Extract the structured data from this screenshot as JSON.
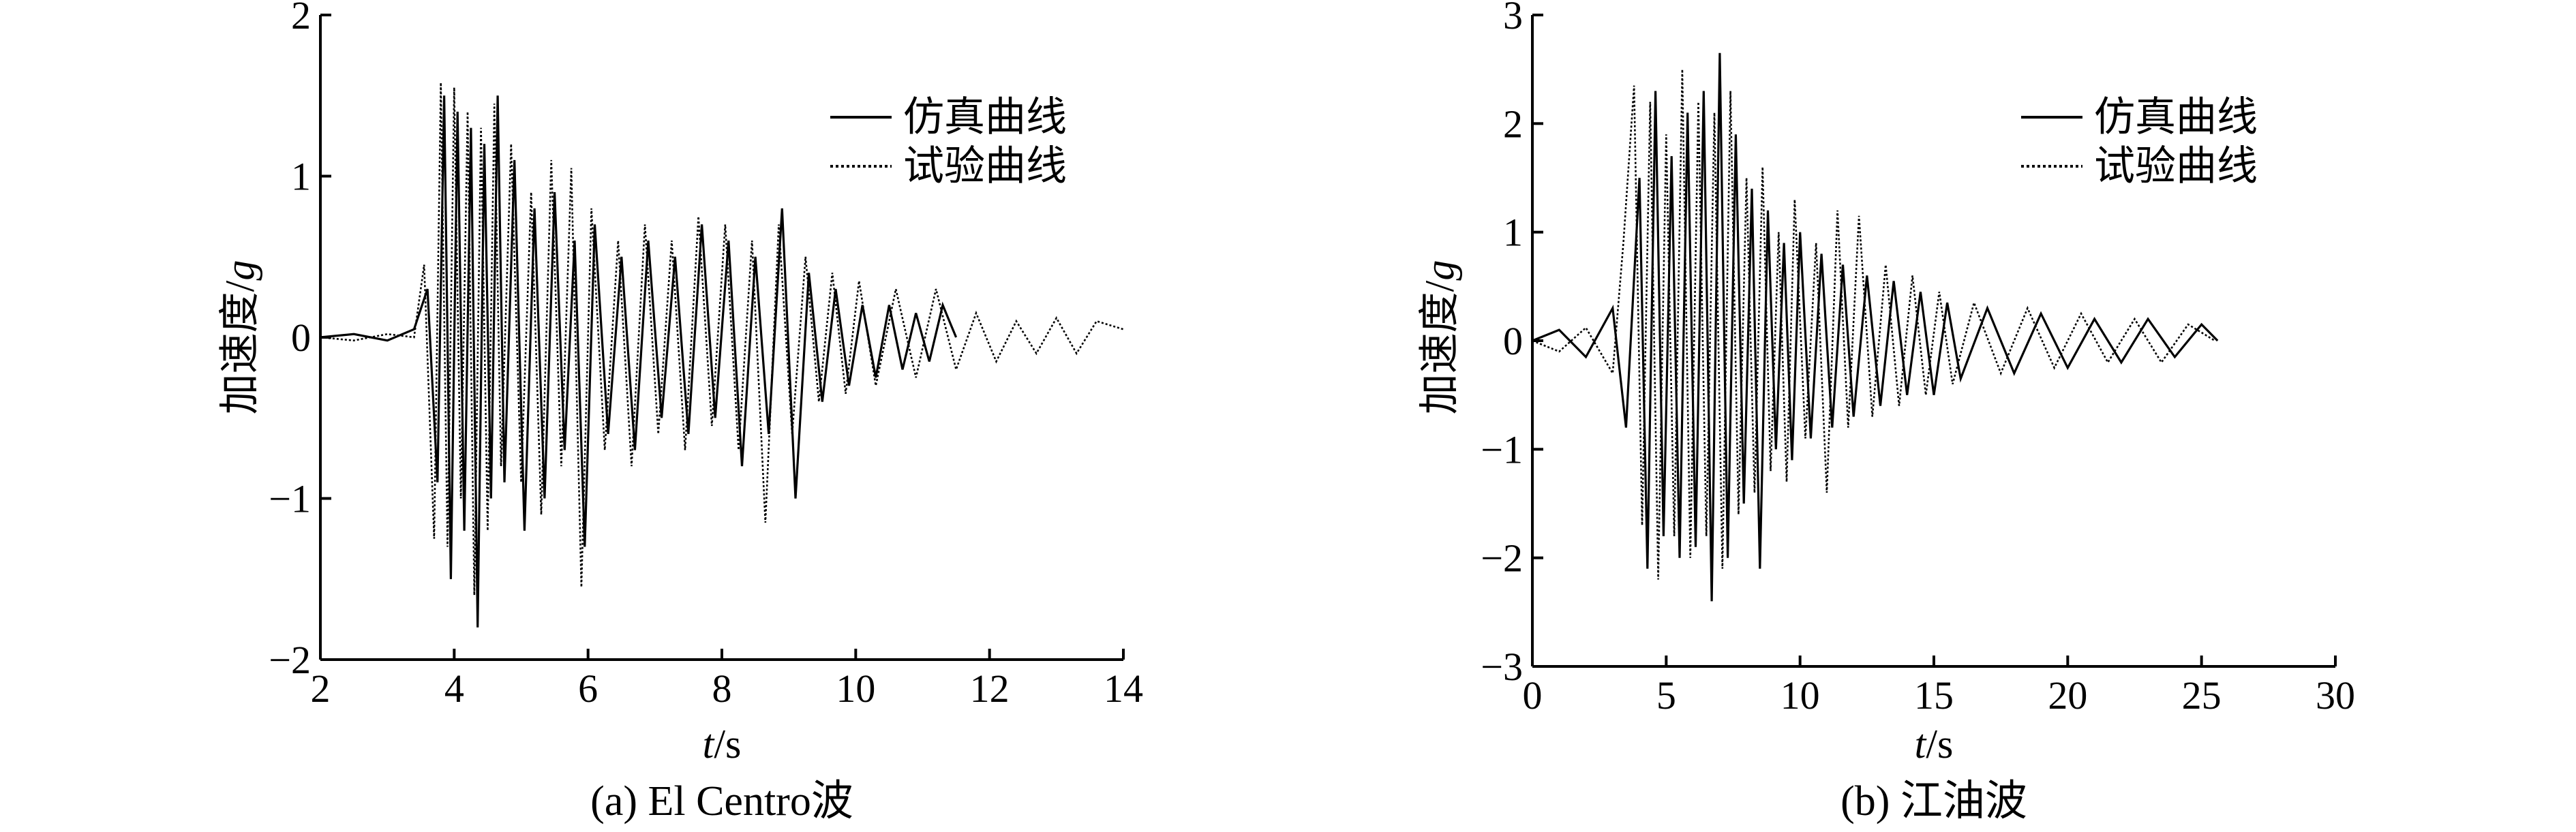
{
  "chart_data": [
    {
      "type": "line",
      "caption": "(a) El Centro波",
      "xlabel_italic": "t",
      "xlabel_unit": "/s",
      "ylabel_text": "加速度/",
      "ylabel_italic": "g",
      "xlim": [
        2,
        14
      ],
      "ylim": [
        -2,
        2
      ],
      "xticks": [
        2,
        4,
        6,
        8,
        10,
        12,
        14
      ],
      "yticks": [
        -2,
        -1,
        0,
        1,
        2
      ],
      "xtick_labels": [
        "2",
        "4",
        "6",
        "8",
        "10",
        "12",
        "14"
      ],
      "ytick_labels": [
        "−2",
        "−1",
        "0",
        "1",
        "2"
      ],
      "legend_position": "top-right",
      "grid": false,
      "series": [
        {
          "name": "仿真曲线",
          "style": "solid",
          "x": [
            2.0,
            2.5,
            3.0,
            3.4,
            3.6,
            3.75,
            3.85,
            3.95,
            4.05,
            4.15,
            4.25,
            4.35,
            4.45,
            4.55,
            4.65,
            4.75,
            4.9,
            5.05,
            5.2,
            5.35,
            5.5,
            5.65,
            5.8,
            5.95,
            6.1,
            6.3,
            6.5,
            6.7,
            6.9,
            7.1,
            7.3,
            7.5,
            7.7,
            7.9,
            8.1,
            8.3,
            8.5,
            8.7,
            8.9,
            9.1,
            9.3,
            9.5,
            9.7,
            9.9,
            10.1,
            10.3,
            10.5,
            10.7,
            10.9,
            11.1,
            11.3,
            11.5
          ],
          "y": [
            0.0,
            0.02,
            -0.02,
            0.05,
            0.3,
            -0.9,
            1.5,
            -1.5,
            1.4,
            -1.2,
            1.3,
            -1.8,
            1.2,
            -1.0,
            1.5,
            -0.9,
            1.1,
            -1.2,
            0.8,
            -1.0,
            0.9,
            -0.7,
            0.6,
            -1.3,
            0.7,
            -0.6,
            0.5,
            -0.7,
            0.6,
            -0.5,
            0.5,
            -0.6,
            0.7,
            -0.5,
            0.6,
            -0.8,
            0.5,
            -0.6,
            0.8,
            -1.0,
            0.4,
            -0.4,
            0.3,
            -0.3,
            0.2,
            -0.25,
            0.2,
            -0.2,
            0.15,
            -0.15,
            0.2,
            0.0
          ]
        },
        {
          "name": "试验曲线",
          "style": "dotted",
          "x": [
            2.0,
            2.5,
            3.0,
            3.4,
            3.55,
            3.7,
            3.8,
            3.9,
            4.0,
            4.1,
            4.2,
            4.3,
            4.4,
            4.5,
            4.6,
            4.7,
            4.85,
            5.0,
            5.15,
            5.3,
            5.45,
            5.6,
            5.75,
            5.9,
            6.05,
            6.25,
            6.45,
            6.65,
            6.85,
            7.05,
            7.25,
            7.45,
            7.65,
            7.85,
            8.05,
            8.25,
            8.45,
            8.65,
            8.85,
            9.05,
            9.25,
            9.45,
            9.65,
            9.85,
            10.05,
            10.3,
            10.6,
            10.9,
            11.2,
            11.5,
            11.8,
            12.1,
            12.4,
            12.7,
            13.0,
            13.3,
            13.6,
            14.0
          ],
          "y": [
            0.0,
            -0.02,
            0.02,
            0.0,
            0.45,
            -1.25,
            1.58,
            -1.3,
            1.55,
            -1.0,
            1.4,
            -1.6,
            1.3,
            -1.2,
            1.45,
            -0.8,
            1.2,
            -0.9,
            0.9,
            -1.1,
            1.1,
            -0.8,
            1.05,
            -1.55,
            0.8,
            -0.7,
            0.6,
            -0.8,
            0.7,
            -0.6,
            0.6,
            -0.7,
            0.75,
            -0.55,
            0.7,
            -0.7,
            0.6,
            -1.15,
            0.7,
            -0.6,
            0.5,
            -0.4,
            0.4,
            -0.35,
            0.35,
            -0.3,
            0.3,
            -0.25,
            0.3,
            -0.2,
            0.15,
            -0.15,
            0.1,
            -0.1,
            0.12,
            -0.1,
            0.1,
            0.05
          ]
        }
      ]
    },
    {
      "type": "line",
      "caption": "(b) 江油波",
      "xlabel_italic": "t",
      "xlabel_unit": "/s",
      "ylabel_text": "加速度/",
      "ylabel_italic": "g",
      "xlim": [
        0,
        30
      ],
      "ylim": [
        -3,
        3
      ],
      "xticks": [
        0,
        5,
        10,
        15,
        20,
        25,
        30
      ],
      "yticks": [
        -3,
        -2,
        -1,
        0,
        1,
        2,
        3
      ],
      "xtick_labels": [
        "0",
        "5",
        "10",
        "15",
        "20",
        "25",
        "30"
      ],
      "ytick_labels": [
        "−3",
        "−2",
        "−1",
        "0",
        "1",
        "2",
        "3"
      ],
      "legend_position": "top-right",
      "grid": false,
      "series": [
        {
          "name": "仿真曲线",
          "style": "solid",
          "x": [
            0.0,
            1.0,
            2.0,
            3.0,
            3.5,
            4.0,
            4.3,
            4.6,
            4.9,
            5.2,
            5.5,
            5.8,
            6.1,
            6.4,
            6.7,
            7.0,
            7.3,
            7.6,
            7.9,
            8.2,
            8.5,
            8.8,
            9.1,
            9.4,
            9.7,
            10.0,
            10.4,
            10.8,
            11.2,
            11.6,
            12.0,
            12.5,
            13.0,
            13.5,
            14.0,
            14.5,
            15.0,
            15.5,
            16.0,
            17.0,
            18.0,
            19.0,
            20.0,
            21.0,
            22.0,
            23.0,
            24.0,
            25.0,
            25.6
          ],
          "y": [
            0.0,
            0.1,
            -0.15,
            0.3,
            -0.8,
            1.5,
            -2.1,
            2.3,
            -1.8,
            1.7,
            -2.0,
            2.1,
            -1.9,
            2.3,
            -2.4,
            2.65,
            -2.0,
            1.9,
            -1.5,
            1.4,
            -2.1,
            1.2,
            -1.0,
            0.9,
            -1.1,
            1.0,
            -0.9,
            0.8,
            -0.8,
            0.7,
            -0.7,
            0.6,
            -0.6,
            0.55,
            -0.5,
            0.45,
            -0.5,
            0.35,
            -0.35,
            0.3,
            -0.3,
            0.25,
            -0.25,
            0.2,
            -0.2,
            0.2,
            -0.15,
            0.15,
            0.0
          ]
        },
        {
          "name": "试验曲线",
          "style": "dotted",
          "x": [
            0.0,
            1.0,
            2.0,
            3.0,
            3.4,
            3.8,
            4.1,
            4.4,
            4.7,
            5.0,
            5.3,
            5.6,
            5.9,
            6.2,
            6.5,
            6.8,
            7.1,
            7.4,
            7.7,
            8.0,
            8.3,
            8.6,
            8.9,
            9.2,
            9.5,
            9.8,
            10.2,
            10.6,
            11.0,
            11.4,
            11.8,
            12.2,
            12.7,
            13.2,
            13.7,
            14.2,
            14.7,
            15.2,
            15.7,
            16.5,
            17.5,
            18.5,
            19.5,
            20.5,
            21.5,
            22.5,
            23.5,
            24.5,
            25.5
          ],
          "y": [
            0.0,
            -0.1,
            0.12,
            -0.3,
            0.9,
            2.35,
            -1.7,
            2.2,
            -2.2,
            1.9,
            -1.8,
            2.5,
            -2.0,
            2.2,
            -1.8,
            2.1,
            -2.1,
            2.3,
            -1.6,
            1.5,
            -1.4,
            1.6,
            -1.2,
            1.0,
            -1.3,
            1.3,
            -0.9,
            0.9,
            -1.4,
            1.2,
            -0.8,
            1.15,
            -0.7,
            0.7,
            -0.6,
            0.6,
            -0.5,
            0.45,
            -0.4,
            0.35,
            -0.3,
            0.3,
            -0.25,
            0.25,
            -0.2,
            0.2,
            -0.2,
            0.15,
            0.0
          ]
        }
      ]
    }
  ]
}
